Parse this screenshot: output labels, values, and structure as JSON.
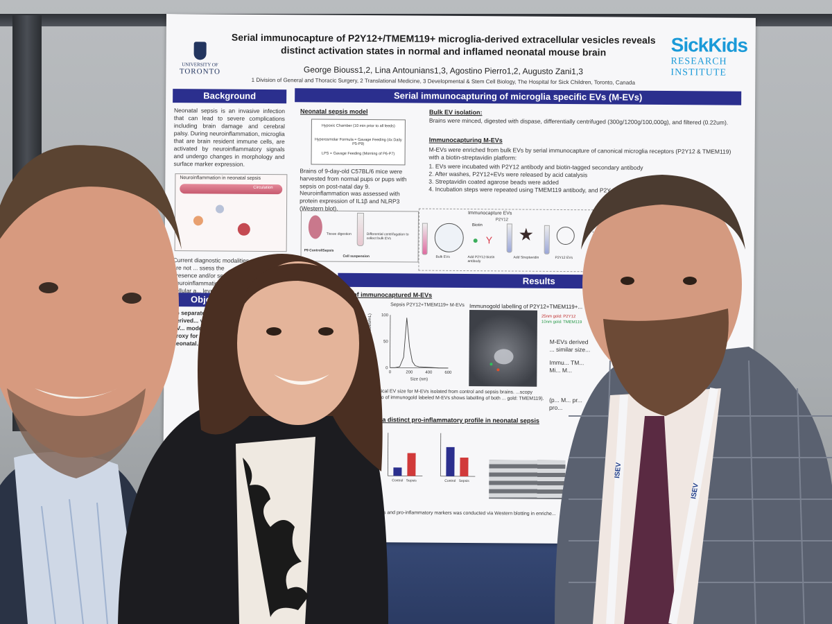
{
  "poster": {
    "title_line1": "Serial immunocapture of P2Y12+/TMEM119+ microglia-derived extracellular vesicles reveals",
    "title_line2": "distinct activation states in normal and inflamed neonatal mouse brain",
    "authors": "George Biouss1,2, Lina Antounians1,3, Agostino Pierro1,2, Augusto Zani1,3",
    "affiliations": "1 Division of General and Thoracic Surgery, 2 Translational Medicine, 3 Developmental & Stem Cell Biology, The Hospital for Sick Children, Toronto, Canada",
    "uoft_line1": "UNIVERSITY OF",
    "uoft_line2": "TORONTO",
    "sickkids_logo": "SickKids",
    "sickkids_line1": "RESEARCH",
    "sickkids_line2": "INSTITUTE",
    "sections": {
      "background": "Background",
      "serial": "Serial immunocapturing of  microglia specific EVs (M-EVs)",
      "results": "Results",
      "objective": "Objecti"
    },
    "background_text": "Neonatal sepsis is an invasive infection that can lead to severe complications including brain damage and cerebral palsy. During neuroinflammation, microglia that are brain resident immune cells, are activated by neuroinflammatory signals and undergo changes in morphology and surface marker expression.",
    "neuroinflammation_label": "Neuroinflammation in neonatal sepsis",
    "circulation_label": "Circulation",
    "diagnostic_text": "Current diagnostic modalities are not ... ssess the presence and/or se... neuroinflammation at a cellular a... level.",
    "objective_text": "To separate ... microglia-derived... vesicles (M-EV... model and e... proxy for ... in neonatal...",
    "neonatal_model_heading": "Neonatal sepsis model",
    "model_box": [
      "Hypoxic Chamber (10 min prior to all feeds)",
      "Hyperosmolar Formula = Gavage Feeding (4x Daily P5-P9)",
      "LPS = Gavage Feeding (Morning of P6-P7)"
    ],
    "model_bullets": [
      "Brains of 9-day-old C57BL/6 mice were harvested from normal pups or pups with sepsis on post-natal day 9.",
      "Neuroinflammation was assessed with protein expression of IL1β and NLRP3 (Western blot)."
    ],
    "workflow_labels": [
      "Tissue digestion",
      "Differential centrifugation to collect bulk EVs",
      "P9 Control/Sepsis",
      "Cell suspension"
    ],
    "bulk_heading": "Bulk EV isolation:",
    "bulk_text": "Brains were minced, digested with dispase, differentially centrifuged (300g/1200g/100,000g), and filtered (0.22um).",
    "immuno_heading": "Immunocapturing M-EVs",
    "immuno_text": "M-EVs were enriched from bulk EVs by serial immunocapture of canonical microglia receptors (P2Y12 & TMEM119) with a biotin-streptavidin platform:",
    "immuno_steps": [
      "1. EVs were incubated with P2Y12 antibody and biotin-tagged secondary antibody",
      "2. After washes, P2Y12+EVs were released by acid catalysis",
      "3. Streptavidin coated agarose beads were added",
      "4. Incubation steps were repeated using TMEM119 antibody, and P2Y..."
    ],
    "immunocapture_label": "Immunocapture EVs",
    "diagram_labels": [
      "Biotin",
      "P2Y12",
      "Bulk EVs",
      "Add P2Y12-biotin antibody",
      "Add Streptavidin",
      "P2Y12 EVs"
    ],
    "results_sub1": "... of immunocaptured M-EVs",
    "nta_title": "Sepsis P2Y12+TMEM119+ M-EVs",
    "nta_ylabel": "Concentration (10^8 particles/mL)",
    "nta_xlabel": "Size (nm)",
    "nta_yticks": [
      "100",
      "50",
      "0"
    ],
    "nta_xticks": [
      "0",
      "200",
      "400",
      "600"
    ],
    "immunogold_title": "Immunogold labelling of P2Y12+TMEM119+...",
    "immunogold_legend": [
      "25nm gold: P2Y12",
      "10nm gold: TMEM119"
    ],
    "results_text_right": [
      "M-EVs derived ... similar size...",
      "Immu... TM... Mi... M...",
      "(p... M... pr... pro..."
    ],
    "results_caption": "...ypical EV size for M-EVs isolated from control and sepsis brains. ...scopy photo of immunogold labeled M-EVs shows labelling of both ... gold: TMEM119).",
    "results_sub2": "...n a distinct pro-inflammatory profile in neonatal sepsis",
    "bar_xlabels": [
      "Control",
      "Sepsis"
    ],
    "footer_text": "...ators and pro-inflammatory markers was conducted via Western blotting in enriche..."
  },
  "badges": {
    "lanyard_text": "ISEV"
  },
  "colors": {
    "section_bar": "#2b2f8e",
    "sickkids_blue": "#1a9ad8",
    "uoft_navy": "#23355f",
    "carpet": "#2f4170"
  },
  "chart_data": [
    {
      "type": "line",
      "title": "Sepsis P2Y12+TMEM119+ M-EVs",
      "xlabel": "Size (nm)",
      "ylabel": "Concentration (10^8 particles/mL)",
      "x": [
        0,
        50,
        100,
        140,
        170,
        200,
        230,
        260,
        300,
        400,
        500,
        600
      ],
      "values": [
        0,
        0,
        2,
        20,
        95,
        40,
        12,
        4,
        2,
        1,
        0,
        0
      ],
      "xlim": [
        0,
        600
      ],
      "ylim": [
        0,
        100
      ]
    },
    {
      "type": "bar",
      "categories": [
        "Control",
        "Sepsis"
      ],
      "series": [
        {
          "values": [
            20,
            55
          ]
        }
      ]
    },
    {
      "type": "bar",
      "categories": [
        "Control",
        "Sepsis"
      ],
      "series": [
        {
          "values": [
            70,
            45
          ]
        }
      ]
    }
  ]
}
